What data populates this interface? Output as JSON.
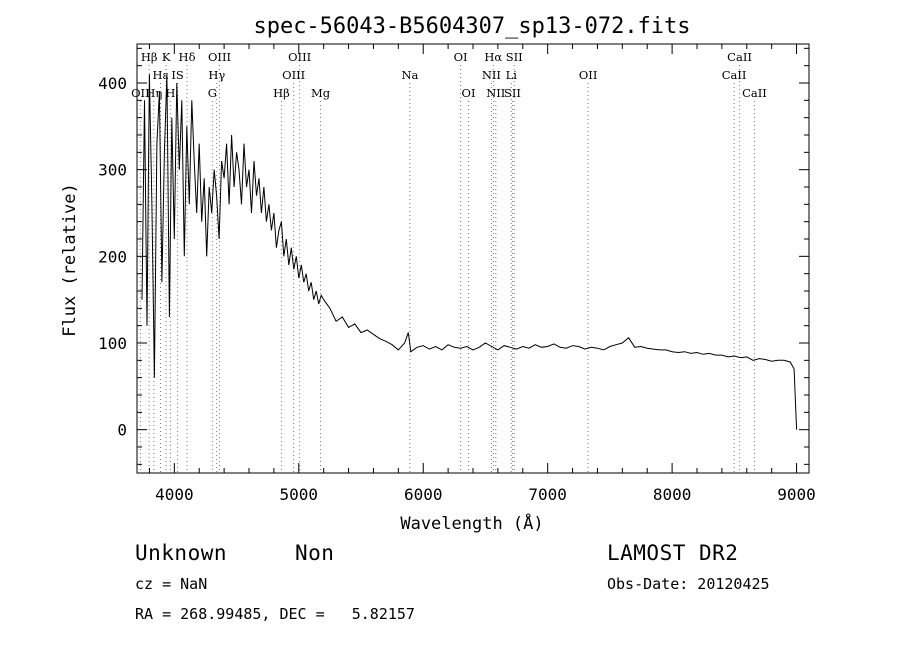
{
  "chart_data": {
    "type": "line",
    "title": "spec-56043-B5604307_sp13-072.fits",
    "xlabel": "Wavelength (Å)",
    "ylabel": "Flux (relative)",
    "xlim": [
      3700,
      9100
    ],
    "ylim": [
      -50,
      445
    ],
    "xticks": [
      4000,
      5000,
      6000,
      7000,
      8000,
      9000
    ],
    "yticks": [
      0,
      100,
      200,
      300,
      400
    ],
    "grid": false,
    "series": [
      {
        "name": "",
        "x": [
          3740,
          3760,
          3780,
          3800,
          3820,
          3840,
          3860,
          3880,
          3900,
          3920,
          3940,
          3960,
          3980,
          4000,
          4020,
          4040,
          4060,
          4080,
          4100,
          4120,
          4140,
          4160,
          4180,
          4200,
          4220,
          4240,
          4260,
          4280,
          4300,
          4320,
          4340,
          4360,
          4380,
          4400,
          4420,
          4440,
          4460,
          4480,
          4500,
          4520,
          4540,
          4560,
          4580,
          4600,
          4620,
          4640,
          4660,
          4680,
          4700,
          4720,
          4740,
          4760,
          4780,
          4800,
          4820,
          4840,
          4860,
          4880,
          4900,
          4920,
          4940,
          4960,
          4980,
          5000,
          5020,
          5040,
          5060,
          5080,
          5100,
          5120,
          5140,
          5160,
          5180,
          5200,
          5250,
          5300,
          5350,
          5400,
          5450,
          5500,
          5550,
          5600,
          5650,
          5700,
          5750,
          5800,
          5850,
          5880,
          5900,
          5950,
          6000,
          6050,
          6100,
          6150,
          6200,
          6250,
          6300,
          6350,
          6400,
          6450,
          6500,
          6550,
          6600,
          6650,
          6700,
          6750,
          6800,
          6850,
          6900,
          6950,
          7000,
          7050,
          7100,
          7150,
          7200,
          7250,
          7300,
          7350,
          7400,
          7450,
          7500,
          7550,
          7600,
          7650,
          7700,
          7750,
          7800,
          7850,
          7900,
          7950,
          8000,
          8050,
          8100,
          8150,
          8200,
          8250,
          8300,
          8350,
          8400,
          8450,
          8500,
          8550,
          8600,
          8650,
          8700,
          8750,
          8800,
          8850,
          8900,
          8950,
          8980,
          9000
        ],
        "y": [
          150,
          380,
          120,
          410,
          260,
          60,
          330,
          390,
          170,
          320,
          410,
          130,
          360,
          220,
          400,
          300,
          380,
          200,
          350,
          260,
          380,
          310,
          250,
          330,
          240,
          290,
          200,
          280,
          250,
          300,
          270,
          220,
          310,
          290,
          330,
          260,
          340,
          280,
          320,
          300,
          260,
          330,
          280,
          300,
          250,
          310,
          270,
          290,
          250,
          280,
          240,
          260,
          230,
          250,
          210,
          230,
          240,
          200,
          220,
          190,
          210,
          185,
          200,
          175,
          190,
          170,
          180,
          160,
          170,
          150,
          160,
          145,
          155,
          150,
          140,
          125,
          130,
          118,
          122,
          112,
          115,
          110,
          105,
          102,
          98,
          92,
          100,
          112,
          90,
          95,
          97,
          93,
          96,
          92,
          98,
          95,
          94,
          96,
          92,
          95,
          100,
          96,
          92,
          97,
          95,
          93,
          96,
          94,
          98,
          95,
          96,
          99,
          95,
          94,
          97,
          96,
          93,
          95,
          94,
          92,
          96,
          98,
          100,
          106,
          95,
          96,
          94,
          93,
          92,
          92,
          90,
          89,
          90,
          88,
          89,
          87,
          88,
          86,
          86,
          84,
          85,
          83,
          84,
          80,
          82,
          81,
          79,
          80,
          80,
          78,
          70,
          0
        ]
      }
    ],
    "lines": [
      {
        "label": "Hβ",
        "x": 3798,
        "row": 1
      },
      {
        "label": "OII",
        "x": 3727,
        "row": 3
      },
      {
        "label": "Hη",
        "x": 3835,
        "row": 3
      },
      {
        "label": "Hε",
        "x": 3889,
        "row": 2
      },
      {
        "label": "K",
        "x": 3934,
        "row": 1
      },
      {
        "label": "H",
        "x": 3968,
        "row": 3
      },
      {
        "label": "Hδ",
        "x": 4102,
        "row": 1
      },
      {
        "label": "IS",
        "x": 4026,
        "row": 2
      },
      {
        "label": "OIII",
        "x": 4363,
        "row": 1
      },
      {
        "label": "Hγ",
        "x": 4341,
        "row": 2
      },
      {
        "label": "G",
        "x": 4305,
        "row": 3
      },
      {
        "label": "Hβ",
        "x": 4861,
        "row": 3
      },
      {
        "label": "OIII",
        "x": 5007,
        "row": 1
      },
      {
        "label": "OIII",
        "x": 4959,
        "row": 2
      },
      {
        "label": "Mg",
        "x": 5175,
        "row": 3
      },
      {
        "label": "Na",
        "x": 5893,
        "row": 2
      },
      {
        "label": "OI",
        "x": 6300,
        "row": 1
      },
      {
        "label": "OI",
        "x": 6364,
        "row": 3
      },
      {
        "label": "Hα",
        "x": 6563,
        "row": 1
      },
      {
        "label": "SII",
        "x": 6731,
        "row": 1
      },
      {
        "label": "NII",
        "x": 6548,
        "row": 2
      },
      {
        "label": "Li",
        "x": 6708,
        "row": 2
      },
      {
        "label": "NII",
        "x": 6583,
        "row": 3
      },
      {
        "label": "SII",
        "x": 6717,
        "row": 3
      },
      {
        "label": "OII",
        "x": 7325,
        "row": 2
      },
      {
        "label": "CaII",
        "x": 8542,
        "row": 1
      },
      {
        "label": "CaII",
        "x": 8498,
        "row": 2
      },
      {
        "label": "CaII",
        "x": 8662,
        "row": 3
      }
    ]
  },
  "info": {
    "class": "Unknown",
    "subclass": "Non",
    "survey": "LAMOST DR2",
    "cz": "cz = NaN",
    "obs_date": "Obs-Date: 20120425",
    "radec": "RA = 268.99485, DEC =   5.82157"
  }
}
